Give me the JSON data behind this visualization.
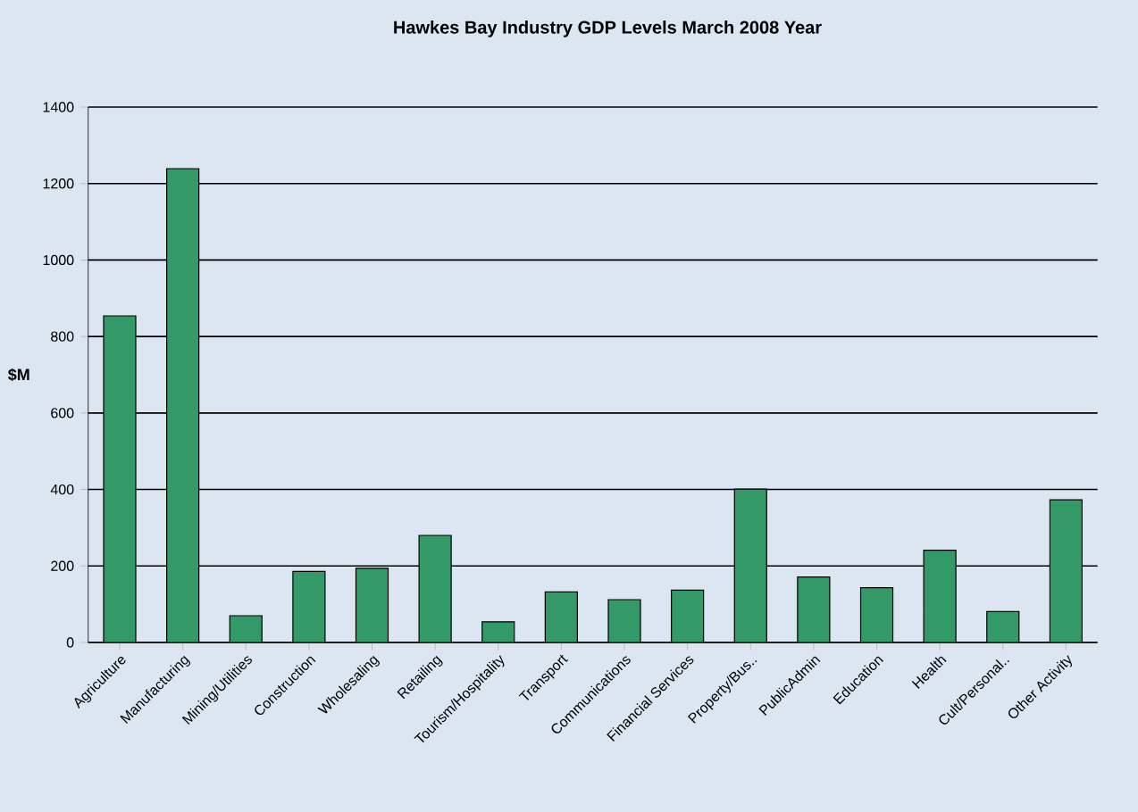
{
  "chart_data": {
    "type": "bar",
    "title": "Hawkes Bay Industry GDP Levels March 2008 Year",
    "ylabel": "$M",
    "categories": [
      "Agriculture",
      "Manufacturing",
      "Mining/Utilities",
      "Construction",
      "Wholesaling",
      "Retailing",
      "Tourism/Hospitality",
      "Transport",
      "Communications",
      "Financial Services",
      "Property/Bus..",
      "PublicAdmin",
      "Education",
      "Health",
      "Cult/Personal..",
      "Other Activity"
    ],
    "values": [
      854,
      1239,
      70,
      186,
      194,
      280,
      54,
      132,
      112,
      137,
      401,
      171,
      143,
      241,
      81,
      373
    ],
    "color": "#339966",
    "ylim": [
      0,
      1400
    ],
    "yticks": [
      0,
      200,
      400,
      600,
      800,
      1000,
      1200,
      1400
    ],
    "grid": "y"
  }
}
